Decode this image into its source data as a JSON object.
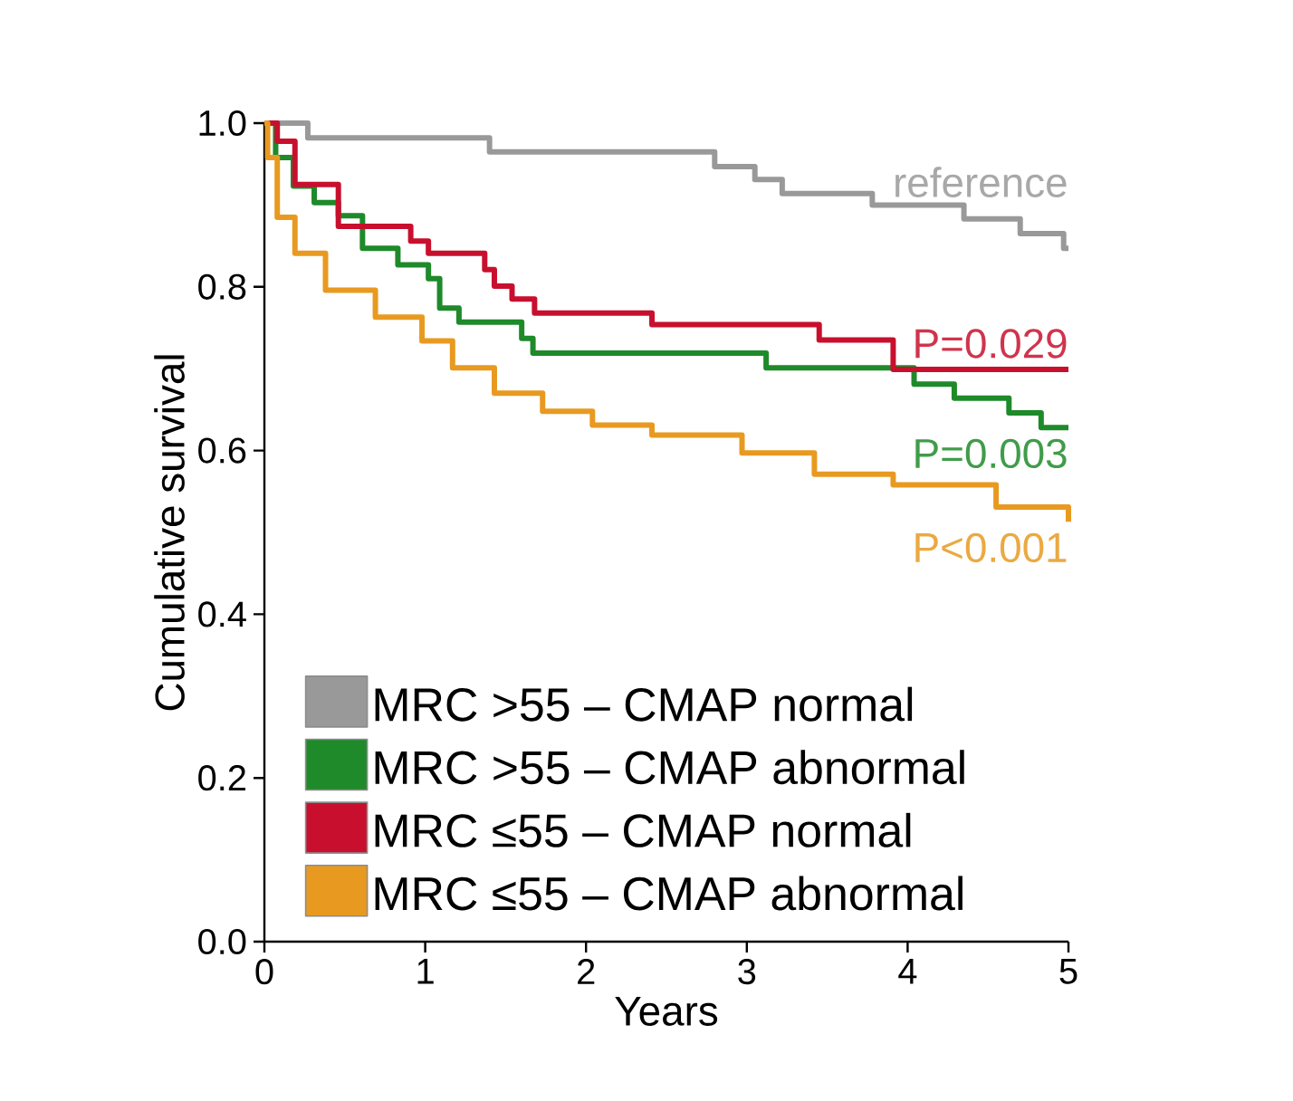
{
  "chart_data": {
    "type": "step",
    "xlabel": "Years",
    "ylabel": "Cumulative survival",
    "xlim": [
      0,
      5
    ],
    "ylim": [
      0,
      1.0
    ],
    "xticks": [
      0,
      1,
      2,
      3,
      4,
      5
    ],
    "yticks": [
      {
        "value": 0,
        "label": "0.0"
      },
      {
        "value": 0.2,
        "label": "0.2"
      },
      {
        "value": 0.4,
        "label": "0.4"
      },
      {
        "value": 0.6,
        "label": "0.6"
      },
      {
        "value": 0.8,
        "label": "0.8"
      },
      {
        "value": 1.0,
        "label": "1.0"
      }
    ],
    "legend": "bottom left",
    "grid": false,
    "series": [
      {
        "name": "MRC >55 – CMAP normal",
        "color": "#999999",
        "x": [
          0,
          0.27,
          1.4,
          2.8,
          3.05,
          3.22,
          3.78,
          4.35,
          4.7,
          4.97,
          5
        ],
        "values": [
          1.0,
          0.982,
          0.965,
          0.947,
          0.931,
          0.914,
          0.9,
          0.883,
          0.865,
          0.847,
          0.847
        ]
      },
      {
        "name": "MRC >55 – CMAP abnormal",
        "color": "#1e8a2a",
        "x": [
          0,
          0.07,
          0.18,
          0.31,
          0.46,
          0.61,
          0.83,
          1.02,
          1.09,
          1.21,
          1.6,
          1.67,
          3.12,
          4.04,
          4.29,
          4.63,
          4.83,
          5
        ],
        "values": [
          1.0,
          0.958,
          0.923,
          0.903,
          0.887,
          0.847,
          0.827,
          0.81,
          0.774,
          0.757,
          0.737,
          0.719,
          0.701,
          0.681,
          0.664,
          0.646,
          0.628,
          0.628
        ]
      },
      {
        "name": "MRC ≤55 – CMAP normal",
        "color": "#c8102e",
        "x": [
          0,
          0.08,
          0.19,
          0.46,
          0.91,
          1.02,
          1.37,
          1.43,
          1.54,
          1.68,
          2.41,
          3.45,
          3.91,
          5
        ],
        "values": [
          1.0,
          0.978,
          0.925,
          0.874,
          0.856,
          0.841,
          0.821,
          0.801,
          0.785,
          0.768,
          0.754,
          0.735,
          0.699,
          0.699
        ]
      },
      {
        "name": "MRC ≤55 – CMAP abnormal",
        "color": "#e89a20",
        "x": [
          0,
          0.02,
          0.08,
          0.19,
          0.38,
          0.69,
          0.98,
          1.17,
          1.43,
          1.73,
          2.04,
          2.41,
          2.97,
          3.42,
          3.91,
          4.55,
          5
        ],
        "values": [
          1.0,
          0.958,
          0.885,
          0.841,
          0.796,
          0.763,
          0.734,
          0.701,
          0.67,
          0.648,
          0.631,
          0.619,
          0.597,
          0.571,
          0.558,
          0.531,
          0.513
        ]
      }
    ],
    "annotations": [
      "reference",
      "P=0.003",
      "P=0.029",
      "P<0.001"
    ]
  }
}
